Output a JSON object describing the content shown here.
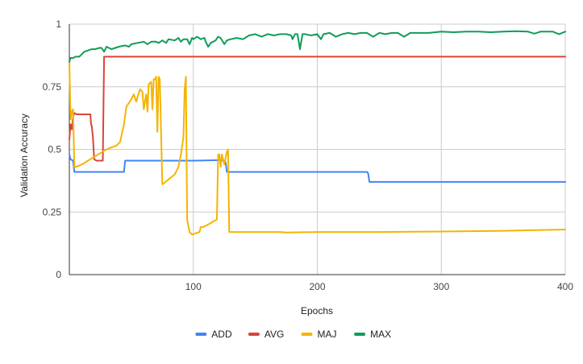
{
  "chart_data": {
    "type": "line",
    "title": "",
    "xlabel": "Epochs",
    "ylabel": "Validation Accuracy",
    "xlim": [
      0,
      400
    ],
    "ylim": [
      0,
      1
    ],
    "x_ticks": [
      100,
      200,
      300,
      400
    ],
    "y_ticks": [
      0,
      0.25,
      0.5,
      0.75,
      1
    ],
    "x_tick_labels": [
      "100",
      "200",
      "300",
      "400"
    ],
    "y_tick_labels": [
      "0",
      "0.25",
      "0.5",
      "0.75",
      "1"
    ],
    "grid": true,
    "legend_position": "bottom",
    "series": [
      {
        "name": "ADD",
        "color": "#4285F4",
        "points": [
          [
            0,
            0.48
          ],
          [
            1,
            0.46
          ],
          [
            3,
            0.455
          ],
          [
            4,
            0.41
          ],
          [
            10,
            0.41
          ],
          [
            30,
            0.41
          ],
          [
            44,
            0.41
          ],
          [
            45,
            0.455
          ],
          [
            50,
            0.455
          ],
          [
            80,
            0.455
          ],
          [
            100,
            0.455
          ],
          [
            120,
            0.457
          ],
          [
            123,
            0.455
          ],
          [
            124,
            0.457
          ],
          [
            126,
            0.45
          ],
          [
            127,
            0.41
          ],
          [
            150,
            0.41
          ],
          [
            200,
            0.41
          ],
          [
            220,
            0.41
          ],
          [
            240,
            0.41
          ],
          [
            241,
            0.405
          ],
          [
            242,
            0.37
          ],
          [
            270,
            0.37
          ],
          [
            300,
            0.37
          ],
          [
            350,
            0.37
          ],
          [
            400,
            0.37
          ]
        ]
      },
      {
        "name": "AVG",
        "color": "#DB4437",
        "points": [
          [
            0,
            0.54
          ],
          [
            1,
            0.6
          ],
          [
            2,
            0.58
          ],
          [
            3,
            0.63
          ],
          [
            4,
            0.645
          ],
          [
            6,
            0.64
          ],
          [
            10,
            0.64
          ],
          [
            15,
            0.64
          ],
          [
            17,
            0.64
          ],
          [
            17.5,
            0.6
          ],
          [
            18,
            0.595
          ],
          [
            19,
            0.55
          ],
          [
            20,
            0.46
          ],
          [
            22,
            0.455
          ],
          [
            26,
            0.455
          ],
          [
            27,
            0.455
          ],
          [
            28,
            0.87
          ],
          [
            100,
            0.87
          ],
          [
            200,
            0.87
          ],
          [
            300,
            0.87
          ],
          [
            400,
            0.87
          ]
        ]
      },
      {
        "name": "MAJ",
        "color": "#F4B400",
        "points": [
          [
            0,
            0.85
          ],
          [
            1,
            0.62
          ],
          [
            2,
            0.65
          ],
          [
            3,
            0.66
          ],
          [
            4,
            0.43
          ],
          [
            5,
            0.43
          ],
          [
            8,
            0.435
          ],
          [
            12,
            0.445
          ],
          [
            15,
            0.455
          ],
          [
            20,
            0.47
          ],
          [
            25,
            0.485
          ],
          [
            30,
            0.5
          ],
          [
            35,
            0.51
          ],
          [
            38,
            0.515
          ],
          [
            41,
            0.53
          ],
          [
            44,
            0.6
          ],
          [
            46,
            0.67
          ],
          [
            50,
            0.7
          ],
          [
            52,
            0.72
          ],
          [
            54,
            0.69
          ],
          [
            55,
            0.71
          ],
          [
            57,
            0.74
          ],
          [
            59,
            0.73
          ],
          [
            60,
            0.66
          ],
          [
            62,
            0.72
          ],
          [
            63,
            0.65
          ],
          [
            64,
            0.76
          ],
          [
            66,
            0.77
          ],
          [
            67,
            0.66
          ],
          [
            68,
            0.78
          ],
          [
            69,
            0.78
          ],
          [
            70,
            0.79
          ],
          [
            71,
            0.57
          ],
          [
            72,
            0.79
          ],
          [
            73,
            0.78
          ],
          [
            75,
            0.36
          ],
          [
            80,
            0.38
          ],
          [
            85,
            0.4
          ],
          [
            88,
            0.43
          ],
          [
            90,
            0.48
          ],
          [
            92,
            0.55
          ],
          [
            93,
            0.74
          ],
          [
            94,
            0.79
          ],
          [
            95,
            0.22
          ],
          [
            97,
            0.17
          ],
          [
            99,
            0.16
          ],
          [
            102,
            0.165
          ],
          [
            105,
            0.17
          ],
          [
            106,
            0.19
          ],
          [
            108,
            0.19
          ],
          [
            112,
            0.2
          ],
          [
            117,
            0.215
          ],
          [
            119,
            0.22
          ],
          [
            120,
            0.48
          ],
          [
            121,
            0.48
          ],
          [
            122,
            0.43
          ],
          [
            123,
            0.48
          ],
          [
            125,
            0.44
          ],
          [
            127,
            0.49
          ],
          [
            128,
            0.5
          ],
          [
            129,
            0.17
          ],
          [
            150,
            0.17
          ],
          [
            170,
            0.17
          ],
          [
            175,
            0.168
          ],
          [
            200,
            0.17
          ],
          [
            250,
            0.17
          ],
          [
            300,
            0.172
          ],
          [
            350,
            0.175
          ],
          [
            400,
            0.18
          ]
        ]
      },
      {
        "name": "MAX",
        "color": "#0F9D58",
        "points": [
          [
            0,
            0.85
          ],
          [
            1,
            0.865
          ],
          [
            3,
            0.865
          ],
          [
            5,
            0.87
          ],
          [
            8,
            0.87
          ],
          [
            10,
            0.88
          ],
          [
            12,
            0.89
          ],
          [
            15,
            0.895
          ],
          [
            18,
            0.9
          ],
          [
            21,
            0.9
          ],
          [
            24,
            0.905
          ],
          [
            26,
            0.905
          ],
          [
            28,
            0.89
          ],
          [
            30,
            0.91
          ],
          [
            34,
            0.9
          ],
          [
            37,
            0.905
          ],
          [
            40,
            0.91
          ],
          [
            45,
            0.915
          ],
          [
            48,
            0.91
          ],
          [
            50,
            0.92
          ],
          [
            55,
            0.925
          ],
          [
            60,
            0.93
          ],
          [
            63,
            0.92
          ],
          [
            66,
            0.93
          ],
          [
            70,
            0.93
          ],
          [
            72,
            0.925
          ],
          [
            75,
            0.935
          ],
          [
            78,
            0.925
          ],
          [
            80,
            0.94
          ],
          [
            85,
            0.935
          ],
          [
            88,
            0.945
          ],
          [
            90,
            0.93
          ],
          [
            92,
            0.94
          ],
          [
            95,
            0.94
          ],
          [
            97,
            0.92
          ],
          [
            99,
            0.945
          ],
          [
            100,
            0.94
          ],
          [
            103,
            0.95
          ],
          [
            106,
            0.94
          ],
          [
            109,
            0.945
          ],
          [
            110,
            0.93
          ],
          [
            112,
            0.91
          ],
          [
            114,
            0.925
          ],
          [
            116,
            0.93
          ],
          [
            118,
            0.935
          ],
          [
            120,
            0.95
          ],
          [
            122,
            0.945
          ],
          [
            125,
            0.92
          ],
          [
            127,
            0.935
          ],
          [
            130,
            0.94
          ],
          [
            135,
            0.945
          ],
          [
            140,
            0.94
          ],
          [
            145,
            0.955
          ],
          [
            150,
            0.96
          ],
          [
            155,
            0.95
          ],
          [
            160,
            0.96
          ],
          [
            165,
            0.955
          ],
          [
            170,
            0.96
          ],
          [
            175,
            0.96
          ],
          [
            179,
            0.955
          ],
          [
            180,
            0.94
          ],
          [
            182,
            0.96
          ],
          [
            184,
            0.96
          ],
          [
            186,
            0.9
          ],
          [
            188,
            0.96
          ],
          [
            190,
            0.96
          ],
          [
            195,
            0.955
          ],
          [
            200,
            0.96
          ],
          [
            203,
            0.94
          ],
          [
            205,
            0.96
          ],
          [
            210,
            0.965
          ],
          [
            215,
            0.95
          ],
          [
            220,
            0.96
          ],
          [
            225,
            0.965
          ],
          [
            230,
            0.96
          ],
          [
            235,
            0.965
          ],
          [
            240,
            0.965
          ],
          [
            245,
            0.95
          ],
          [
            250,
            0.965
          ],
          [
            255,
            0.96
          ],
          [
            260,
            0.965
          ],
          [
            265,
            0.965
          ],
          [
            270,
            0.95
          ],
          [
            275,
            0.965
          ],
          [
            280,
            0.965
          ],
          [
            290,
            0.965
          ],
          [
            300,
            0.97
          ],
          [
            310,
            0.968
          ],
          [
            320,
            0.97
          ],
          [
            330,
            0.97
          ],
          [
            340,
            0.968
          ],
          [
            350,
            0.97
          ],
          [
            360,
            0.972
          ],
          [
            370,
            0.97
          ],
          [
            375,
            0.962
          ],
          [
            380,
            0.97
          ],
          [
            390,
            0.97
          ],
          [
            395,
            0.96
          ],
          [
            400,
            0.97
          ]
        ]
      }
    ]
  }
}
